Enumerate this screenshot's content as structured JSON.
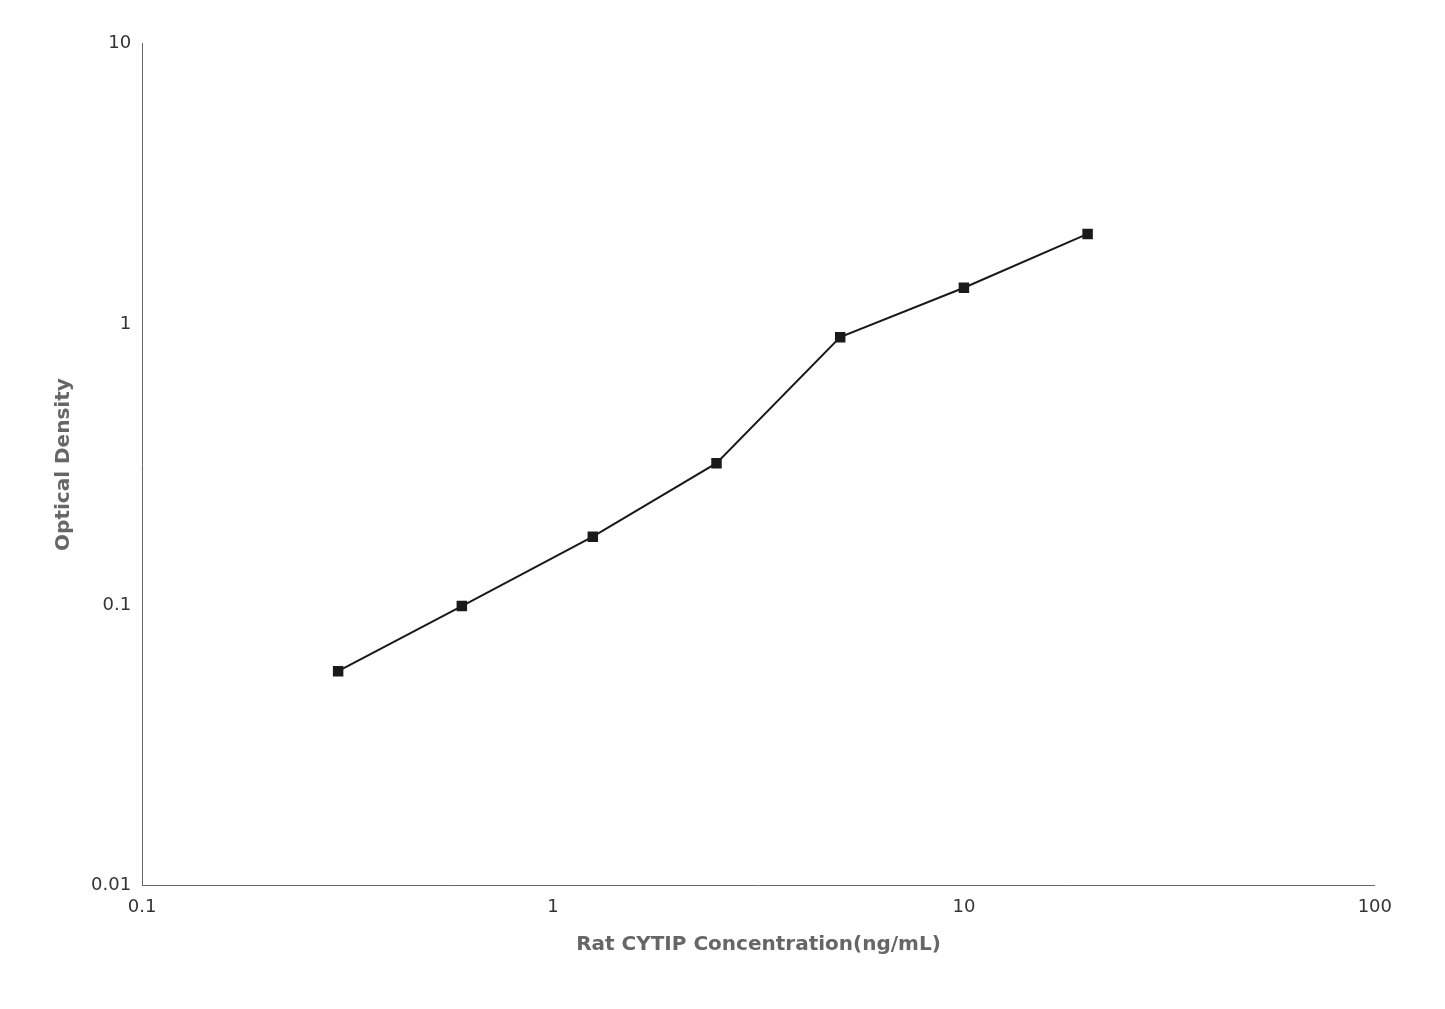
{
  "chart_data": {
    "type": "line",
    "x": [
      0.3,
      0.6,
      1.25,
      2.5,
      5.0,
      10.0,
      20.0
    ],
    "values": [
      0.058,
      0.099,
      0.175,
      0.32,
      0.9,
      1.35,
      2.1
    ],
    "xlabel": "Rat CYTIP Concentration(ng/mL)",
    "ylabel": "Optical Density",
    "xlim": [
      0.1,
      100
    ],
    "ylim": [
      0.01,
      10
    ],
    "xticks": [
      0.1,
      1,
      10,
      100
    ],
    "yticks": [
      0.01,
      0.1,
      1,
      10
    ],
    "log": true,
    "grid": false,
    "color": "#1a1a1a",
    "marker": "square"
  }
}
